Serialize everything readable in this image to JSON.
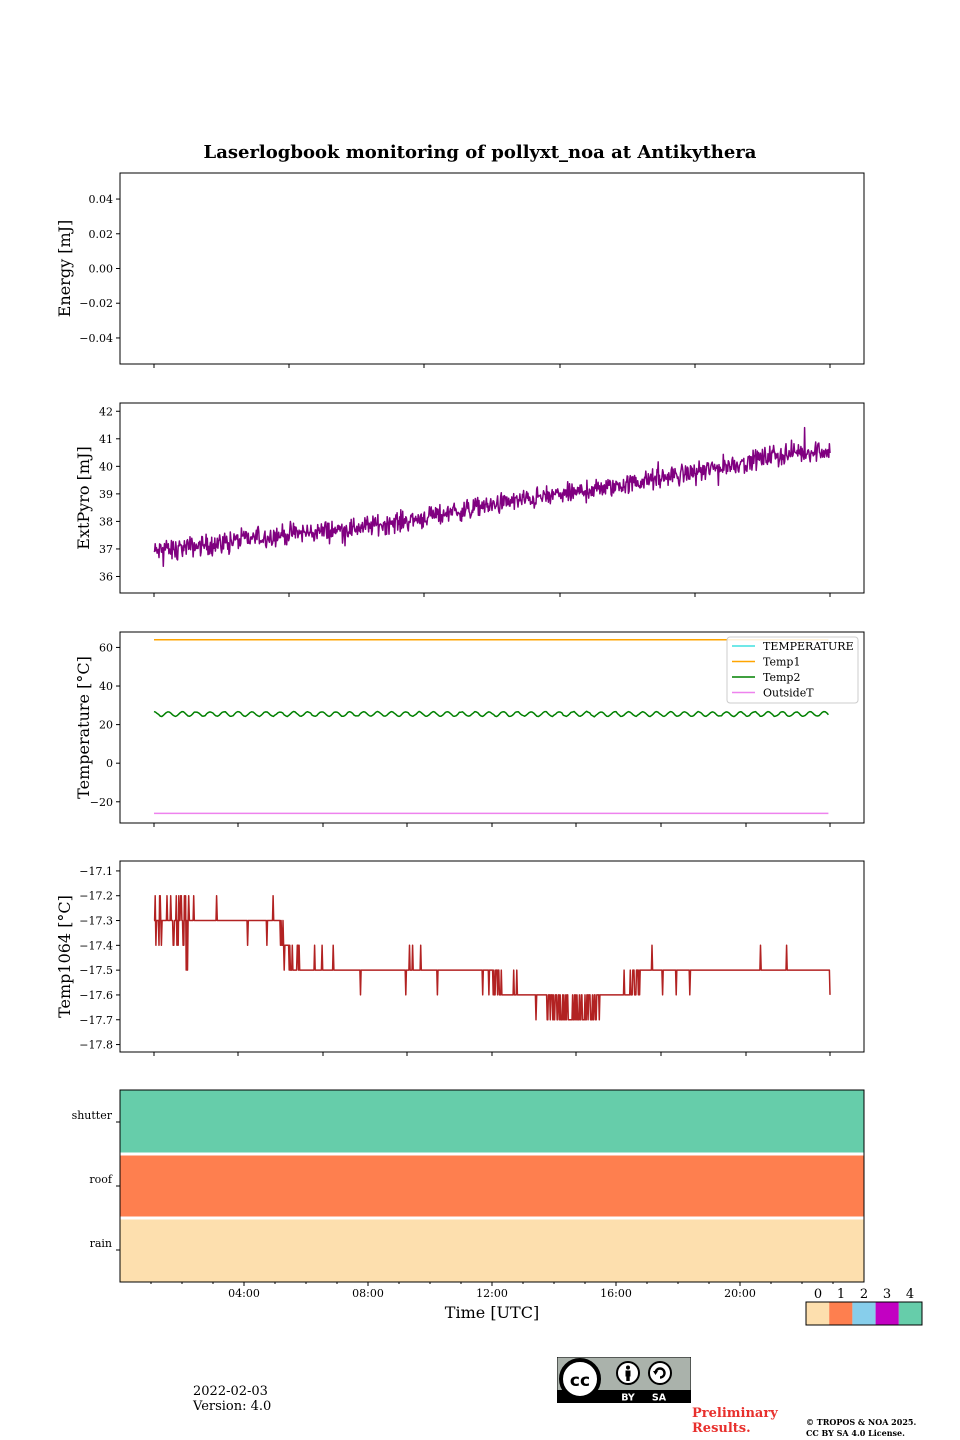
{
  "chart_data": [
    {
      "type": "line",
      "title": "Laserlogbook monitoring of pollyxt_noa at Antikythera",
      "ylabel": "Energy [mJ]",
      "ylim": [
        -0.055,
        0.055
      ],
      "yticks": [
        "0.04",
        "0.02",
        "0.00",
        "−0.02",
        "−0.04"
      ],
      "ytick_values": [
        0.04,
        0.02,
        0.0,
        -0.02,
        -0.04
      ],
      "series": []
    },
    {
      "type": "line",
      "ylabel": "ExtPyro [mJ]",
      "ylim": [
        35.4,
        42.3
      ],
      "yticks": [
        "42",
        "41",
        "40",
        "39",
        "38",
        "37",
        "36"
      ],
      "ytick_values": [
        42,
        41,
        40,
        39,
        38,
        37,
        36
      ],
      "series": [
        {
          "color": "#800080",
          "x": [
            1.0,
            3.0,
            5.0,
            7.0,
            9.0,
            11.0,
            13.0,
            15.0,
            17.0,
            19.0,
            21.0,
            22.8
          ],
          "values": [
            36.9,
            37.2,
            37.5,
            37.7,
            38.0,
            38.4,
            38.8,
            39.1,
            39.5,
            39.9,
            40.4,
            40.6
          ]
        }
      ]
    },
    {
      "type": "line",
      "ylabel": "Temperature [°C]",
      "ylim": [
        -31,
        68
      ],
      "yticks": [
        "60",
        "40",
        "20",
        "0",
        "−20"
      ],
      "ytick_values": [
        60,
        40,
        20,
        0,
        -20
      ],
      "legend": "top-right",
      "series": [
        {
          "name": "TEMPERATURE",
          "color": "#40e0e0",
          "x": [],
          "values": []
        },
        {
          "name": "Temp1",
          "color": "#ffa500",
          "x": [
            1.0,
            22.8
          ],
          "values": [
            64,
            64
          ]
        },
        {
          "name": "Temp2",
          "color": "#008000",
          "x": [
            1.0,
            22.8
          ],
          "values": [
            25.5,
            25.5
          ]
        },
        {
          "name": "OutsideT",
          "color": "#ee82ee",
          "x": [
            1.0,
            22.8
          ],
          "values": [
            -26,
            -26
          ]
        }
      ]
    },
    {
      "type": "line",
      "ylabel": "Temp1064 [°C]",
      "ylim": [
        -17.83,
        -17.06
      ],
      "yticks": [
        "−17.1",
        "−17.2",
        "−17.3",
        "−17.4",
        "−17.5",
        "−17.6",
        "−17.7",
        "−17.8"
      ],
      "ytick_values": [
        -17.1,
        -17.2,
        -17.3,
        -17.4,
        -17.5,
        -17.6,
        -17.7,
        -17.8
      ],
      "series": [
        {
          "color": "#b22222",
          "x": [
            1.0,
            2.0,
            3.0,
            4.0,
            5.0,
            5.3,
            7.0,
            9.0,
            11.0,
            12.0,
            13.0,
            14.0,
            15.0,
            16.0,
            17.0,
            19.0,
            21.0,
            22.8
          ],
          "values": [
            -17.3,
            -17.3,
            -17.3,
            -17.3,
            -17.3,
            -17.45,
            -17.5,
            -17.5,
            -17.5,
            -17.55,
            -17.6,
            -17.65,
            -17.65,
            -17.6,
            -17.5,
            -17.5,
            -17.5,
            -17.5
          ]
        }
      ]
    },
    {
      "type": "heatmap",
      "rows": [
        "shutter",
        "roof",
        "rain"
      ],
      "row_values": [
        4,
        1,
        0
      ],
      "xlabel": "Time [UTC]",
      "xticks": [
        "04:00",
        "08:00",
        "12:00",
        "16:00",
        "20:00"
      ],
      "xtick_values": [
        4,
        8,
        12,
        16,
        20
      ],
      "xlim": [
        0,
        24
      ],
      "colorbar": {
        "labels": [
          "0",
          "1",
          "2",
          "3",
          "4"
        ],
        "colors": [
          "#fddfae",
          "#fe7f4f",
          "#87ceeb",
          "#c201c2",
          "#66cdaa"
        ]
      }
    }
  ],
  "footer": {
    "date": "2022-02-03",
    "version": "Version: 4.0",
    "preliminary_line1": "Preliminary",
    "preliminary_line2": "Results.",
    "copyright_line1": "© TROPOS & NOA 2025.",
    "copyright_line2": "CC BY SA 4.0 License.",
    "license_badge": {
      "text": [
        "BY",
        "SA"
      ],
      "icons": [
        "cc-icon",
        "person-icon",
        "share-alike-icon"
      ]
    }
  }
}
